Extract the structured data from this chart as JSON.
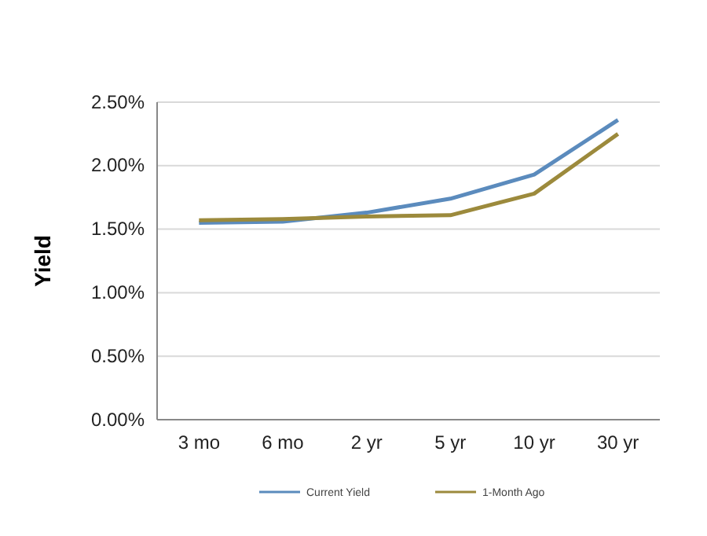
{
  "chart_data": {
    "type": "line",
    "ylabel": "Yield",
    "categories": [
      "3 mo",
      "6 mo",
      "2 yr",
      "5 yr",
      "10 yr",
      "30 yr"
    ],
    "series": [
      {
        "name": "Current Yield",
        "color": "#5b8bbd",
        "values": [
          1.55,
          1.56,
          1.63,
          1.74,
          1.93,
          2.36
        ]
      },
      {
        "name": "1-Month Ago",
        "color": "#9c8a3c",
        "values": [
          1.57,
          1.58,
          1.6,
          1.61,
          1.78,
          2.25
        ]
      }
    ],
    "ylim": [
      0,
      2.5
    ],
    "yticks": [
      {
        "value": 0,
        "label": "0.00%"
      },
      {
        "value": 0.5,
        "label": "0.50%"
      },
      {
        "value": 1,
        "label": "1.00%"
      },
      {
        "value": 1.5,
        "label": "1.50%"
      },
      {
        "value": 2,
        "label": "2.00%"
      },
      {
        "value": 2.5,
        "label": "2.50%"
      }
    ],
    "grid": "y",
    "legend": "bottom",
    "marker": "none",
    "line_style": "solid"
  }
}
